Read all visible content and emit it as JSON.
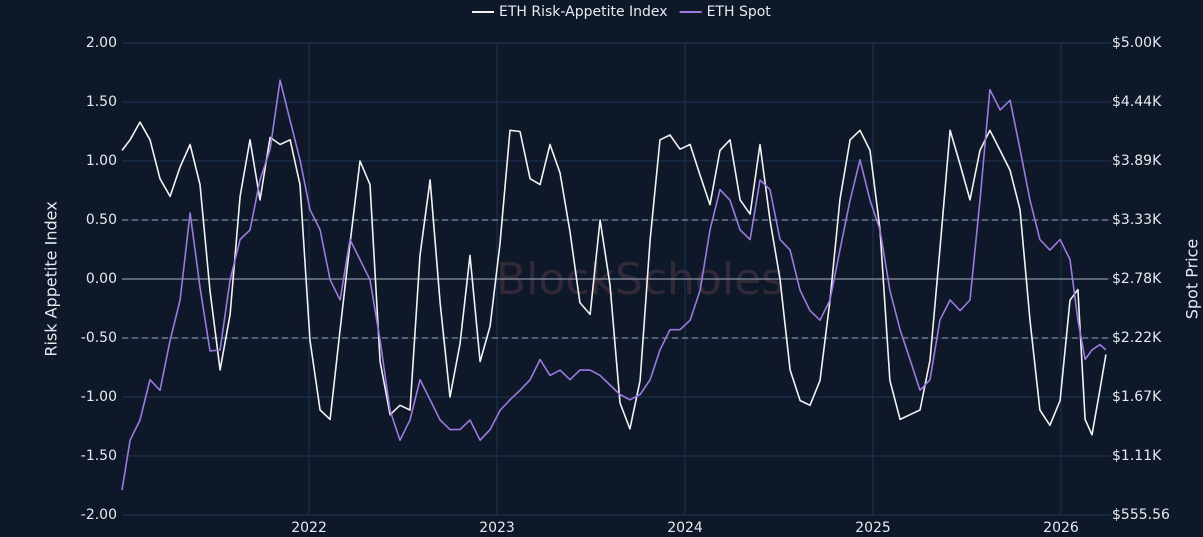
{
  "chart_data": {
    "type": "line",
    "watermark": "BlockScholes",
    "ylabel": "Risk Appetite Index",
    "y2label": "Spot Price",
    "xlim": [
      2021.005,
      2026.25
    ],
    "xticks": [
      2022,
      2023,
      2024,
      2025,
      2026
    ],
    "ylim": [
      -2,
      2
    ],
    "yticks": [
      {
        "value": -2,
        "label": "-2.00"
      },
      {
        "value": -1.5,
        "label": "-1.50"
      },
      {
        "value": -1,
        "label": "-1.00"
      },
      {
        "value": -0.5,
        "label": "-0.50"
      },
      {
        "value": 0,
        "label": "0.00"
      },
      {
        "value": 0.5,
        "label": "0.50"
      },
      {
        "value": 1,
        "label": "1.00"
      },
      {
        "value": 1.5,
        "label": "1.50"
      },
      {
        "value": 2,
        "label": "2.00"
      }
    ],
    "y2lim": [
      555.56,
      5000
    ],
    "y2ticks": [
      {
        "value": 555.56,
        "label": "$555.56"
      },
      {
        "value": 1111.11,
        "label": "$1.11K"
      },
      {
        "value": 1666.67,
        "label": "$1.67K"
      },
      {
        "value": 2222.22,
        "label": "$2.22K"
      },
      {
        "value": 2777.78,
        "label": "$2.78K"
      },
      {
        "value": 3333.33,
        "label": "$3.33K"
      },
      {
        "value": 3888.89,
        "label": "$3.89K"
      },
      {
        "value": 4444.44,
        "label": "$4.44K"
      },
      {
        "value": 5000,
        "label": "$5.00K"
      }
    ],
    "grid": true,
    "hlines": [
      {
        "value": 0,
        "style": "solid"
      },
      {
        "value": 0.5,
        "style": "dashed"
      },
      {
        "value": -0.5,
        "style": "dashed"
      }
    ],
    "legend": "top",
    "x": [
      2021.005,
      2021.048,
      2021.101,
      2021.154,
      2021.207,
      2021.261,
      2021.314,
      2021.367,
      2021.42,
      2021.473,
      2021.527,
      2021.58,
      2021.633,
      2021.686,
      2021.739,
      2021.793,
      2021.846,
      2021.899,
      2021.952,
      2022.005,
      2022.059,
      2022.112,
      2022.165,
      2022.218,
      2022.271,
      2022.324,
      2022.378,
      2022.431,
      2022.484,
      2022.537,
      2022.59,
      2022.644,
      2022.697,
      2022.75,
      2022.803,
      2022.856,
      2022.91,
      2022.963,
      2023.016,
      2023.069,
      2023.122,
      2023.176,
      2023.229,
      2023.282,
      2023.335,
      2023.388,
      2023.441,
      2023.495,
      2023.548,
      2023.601,
      2023.654,
      2023.707,
      2023.761,
      2023.814,
      2023.867,
      2023.92,
      2023.973,
      2024.027,
      2024.08,
      2024.133,
      2024.186,
      2024.239,
      2024.293,
      2024.346,
      2024.399,
      2024.452,
      2024.505,
      2024.559,
      2024.612,
      2024.665,
      2024.718,
      2024.771,
      2024.824,
      2024.878,
      2024.931,
      2024.984,
      2025.037,
      2025.09,
      2025.144,
      2025.197,
      2025.25,
      2025.303,
      2025.356,
      2025.41,
      2025.463,
      2025.516,
      2025.569,
      2025.622,
      2025.676,
      2025.729,
      2025.782,
      2025.835,
      2025.888,
      2025.941,
      2025.995,
      2026.048,
      2026.09,
      2026.128,
      2026.165,
      2026.207,
      2026.239
    ],
    "series": [
      {
        "name": "ETH Risk-Appetite Index",
        "color": "#f2f2f2",
        "axis": "y",
        "values": [
          1.09,
          1.18,
          1.33,
          1.18,
          0.85,
          0.7,
          0.95,
          1.14,
          0.8,
          -0.1,
          -0.77,
          -0.3,
          0.7,
          1.18,
          0.67,
          1.2,
          1.14,
          1.18,
          0.8,
          -0.52,
          -1.11,
          -1.19,
          -0.43,
          0.3,
          1.0,
          0.8,
          -0.7,
          -1.15,
          -1.07,
          -1.11,
          0.2,
          0.84,
          -0.2,
          -1.0,
          -0.55,
          0.2,
          -0.7,
          -0.4,
          0.3,
          1.26,
          1.25,
          0.85,
          0.8,
          1.14,
          0.9,
          0.4,
          -0.2,
          -0.3,
          0.5,
          -0.05,
          -1.05,
          -1.27,
          -0.86,
          0.33,
          1.18,
          1.22,
          1.1,
          1.14,
          0.88,
          0.63,
          1.09,
          1.18,
          0.67,
          0.55,
          1.14,
          0.5,
          0.0,
          -0.77,
          -1.03,
          -1.07,
          -0.86,
          -0.18,
          0.67,
          1.18,
          1.26,
          1.09,
          0.42,
          -0.86,
          -1.19,
          -1.15,
          -1.11,
          -0.69,
          0.25,
          1.26,
          0.97,
          0.67,
          1.09,
          1.26,
          1.09,
          0.92,
          0.59,
          -0.35,
          -1.11,
          -1.24,
          -1.03,
          -0.18,
          -0.09,
          -1.19,
          -1.32,
          -0.94,
          -0.64
        ]
      },
      {
        "name": "ETH Spot",
        "color": "#9b7ae0",
        "axis": "y2",
        "values": [
          790,
          1260,
          1450,
          1830,
          1730,
          2200,
          2580,
          3400,
          2700,
          2100,
          2110,
          2770,
          3150,
          3240,
          3710,
          4000,
          4650,
          4270,
          3900,
          3430,
          3240,
          2770,
          2580,
          3150,
          2960,
          2770,
          2200,
          1540,
          1260,
          1450,
          1830,
          1640,
          1450,
          1360,
          1360,
          1450,
          1260,
          1360,
          1540,
          1640,
          1730,
          1830,
          2020,
          1870,
          1920,
          1830,
          1920,
          1920,
          1870,
          1780,
          1690,
          1640,
          1690,
          1830,
          2110,
          2300,
          2300,
          2390,
          2670,
          3240,
          3620,
          3520,
          3240,
          3150,
          3710,
          3620,
          3150,
          3050,
          2670,
          2480,
          2390,
          2580,
          3050,
          3520,
          3900,
          3520,
          3240,
          2670,
          2300,
          2020,
          1730,
          1830,
          2390,
          2580,
          2480,
          2580,
          3520,
          4560,
          4370,
          4460,
          4000,
          3520,
          3150,
          3050,
          3150,
          2960,
          2390,
          2020,
          2110,
          2160,
          2110
        ]
      }
    ]
  }
}
